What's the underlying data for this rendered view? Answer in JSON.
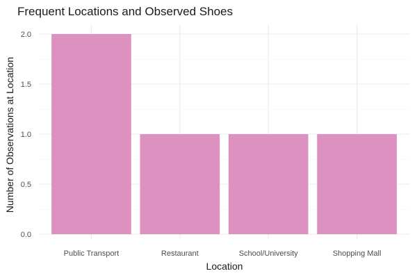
{
  "chart_data": {
    "type": "bar",
    "title": "Frequent Locations and Observed Shoes",
    "xlabel": "Location",
    "ylabel": "Number of Observations at Location",
    "categories": [
      "Public Transport",
      "Restaurant",
      "School/University",
      "Shopping Mall"
    ],
    "values": [
      2,
      1,
      1,
      1
    ],
    "ylim": [
      0,
      2
    ],
    "yticks": [
      "0.0",
      "0.5",
      "1.0",
      "1.5",
      "2.0"
    ],
    "grid": true,
    "legend": "none",
    "bar_color": "#dc91c1",
    "grid_color": "#ebebeb"
  }
}
